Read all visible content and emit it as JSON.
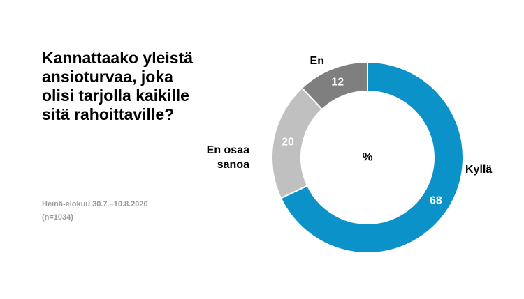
{
  "title_lines": [
    "Kannattaako yleistä",
    "ansioturvaa, joka",
    "olisi tarjolla kaikille",
    "sitä rahoittaville?"
  ],
  "notes": {
    "period": "Heinä-elokuu 30.7.–10.8.2020",
    "sample": "(n=1034)"
  },
  "chart_data": {
    "type": "pie",
    "style": "donut",
    "center_label": "%",
    "slices": [
      {
        "label": "Kyllä",
        "value": 68,
        "color": "#0b93c9"
      },
      {
        "label": "En osaa sanoa",
        "label_lines": [
          "En osaa",
          "sanoa"
        ],
        "value": 20,
        "color": "#c0c0c0"
      },
      {
        "label": "En",
        "value": 12,
        "color": "#7f7f7f"
      }
    ]
  }
}
